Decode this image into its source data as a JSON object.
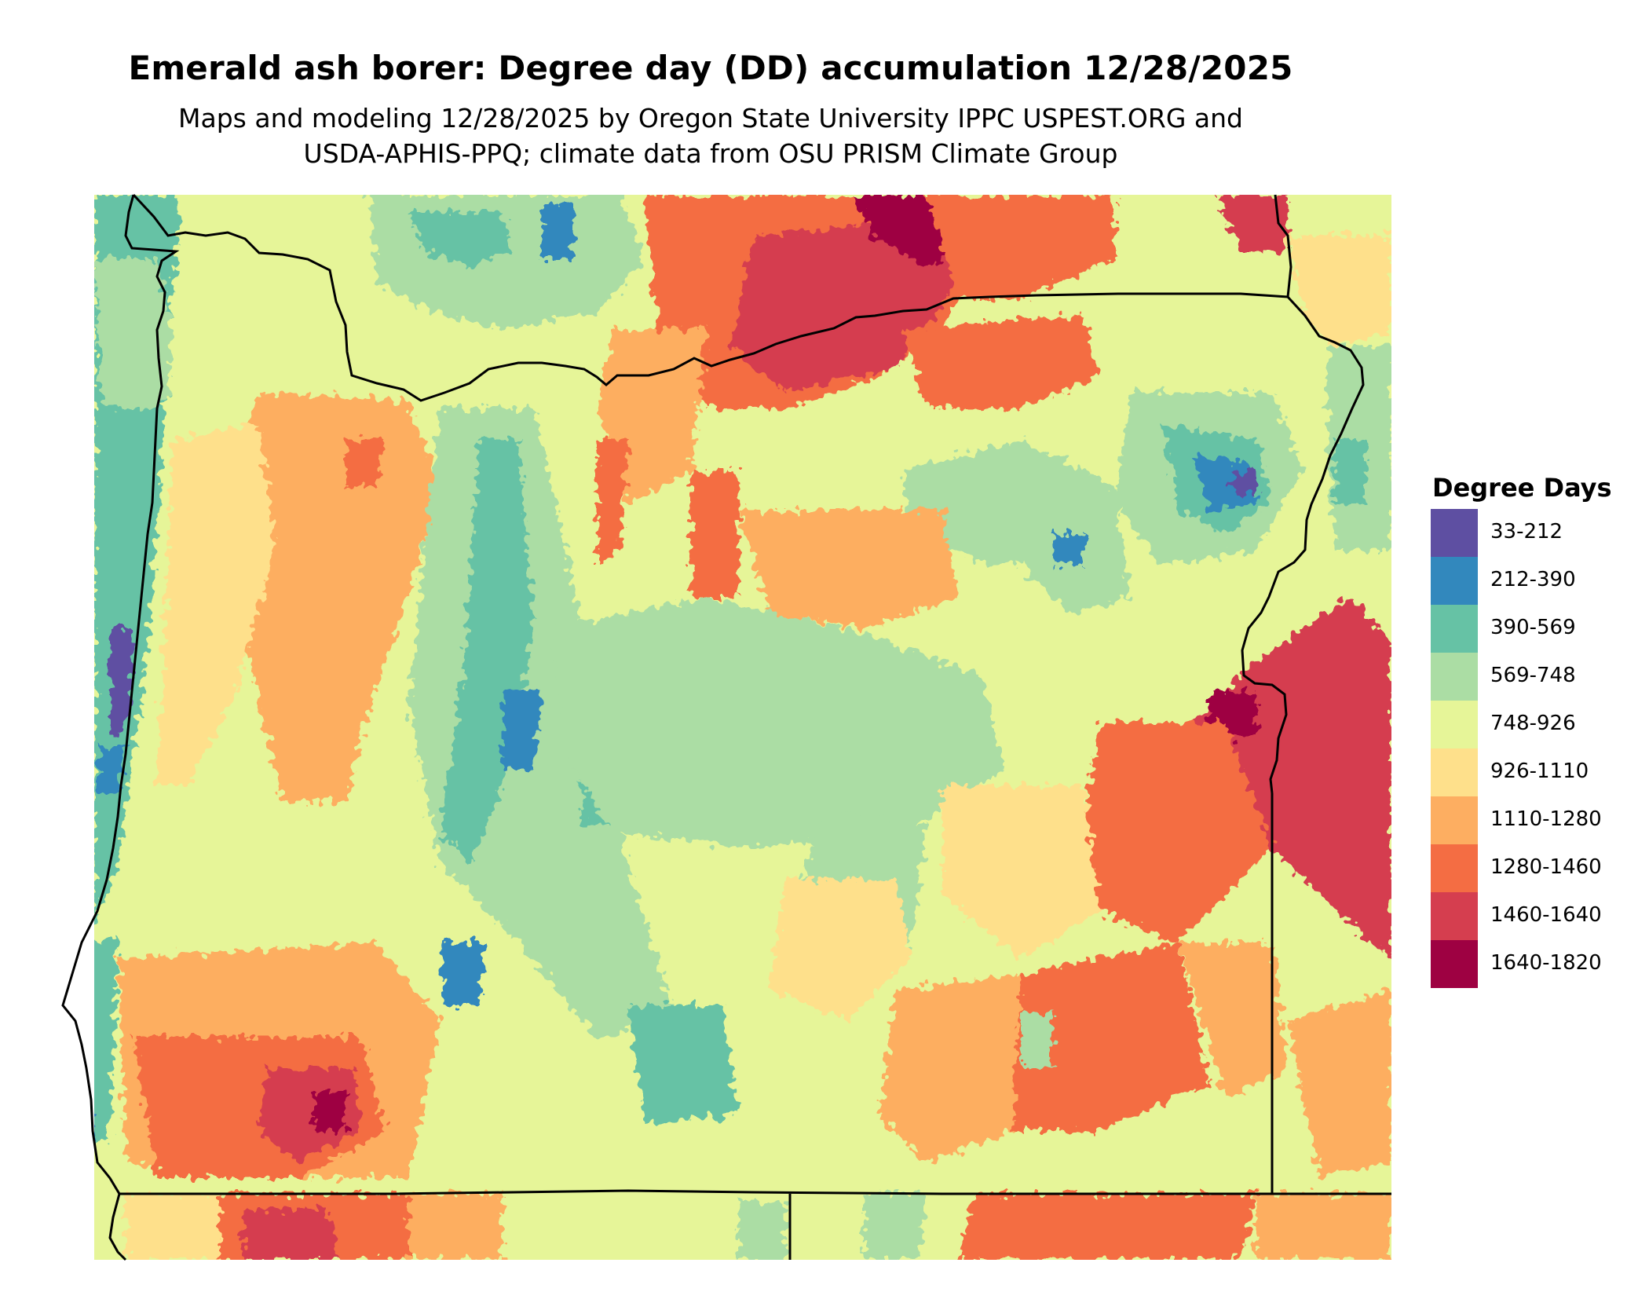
{
  "title": "Emerald ash borer: Degree day (DD) accumulation 12/28/2025",
  "subtitle_line1": "Maps and modeling 12/28/2025 by Oregon State University IPPC USPEST.ORG and",
  "subtitle_line2": "USDA-APHIS-PPQ; climate data from OSU PRISM Climate Group",
  "legend": {
    "title": "Degree Days",
    "classes": [
      {
        "label": "33-212",
        "color": "#5e4fa2"
      },
      {
        "label": "212-390",
        "color": "#3288bd"
      },
      {
        "label": "390-569",
        "color": "#66c2a5"
      },
      {
        "label": "569-748",
        "color": "#abdda4"
      },
      {
        "label": "748-926",
        "color": "#e6f598"
      },
      {
        "label": "926-1110",
        "color": "#fee08b"
      },
      {
        "label": "1110-1280",
        "color": "#fdae61"
      },
      {
        "label": "1280-1460",
        "color": "#f46d43"
      },
      {
        "label": "1460-1640",
        "color": "#d53e4f"
      },
      {
        "label": "1640-1820",
        "color": "#9e0142"
      }
    ]
  },
  "map": {
    "region": "Oregon",
    "background_class": 4
  }
}
